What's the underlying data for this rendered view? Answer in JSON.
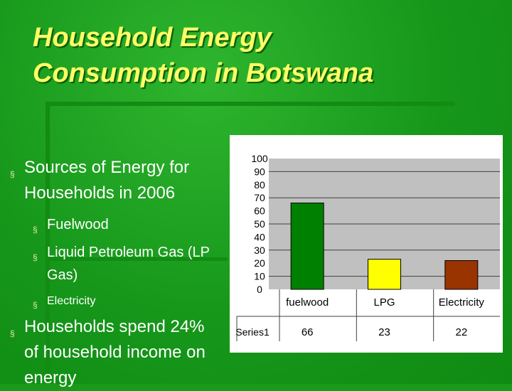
{
  "title": {
    "line1": "Household Energy",
    "line2": "Consumption in Botswana"
  },
  "bullets": {
    "sources": "Sources of Energy for Households in 2006",
    "fuelwood": "Fuelwood",
    "lpg": "Liquid Petroleum Gas (LP Gas)",
    "electricity": "Electricity",
    "spend": "Households spend 24% of household income on energy"
  },
  "colors": {
    "background": "#1a9a1a",
    "title": "#ffff66",
    "plot_area": "#c0c0c0"
  },
  "chart_data": {
    "type": "bar",
    "categories": [
      "fuelwood",
      "LPG",
      "Electricity"
    ],
    "series": [
      {
        "name": "Series1",
        "values": [
          66,
          23,
          22
        ],
        "colors": [
          "#008000",
          "#ffff00",
          "#993300"
        ]
      }
    ],
    "yticks": [
      "0",
      "10",
      "20",
      "30",
      "40",
      "50",
      "60",
      "70",
      "80",
      "90",
      "100"
    ],
    "ylim": [
      0,
      100
    ],
    "grid": true,
    "data_table": true
  }
}
